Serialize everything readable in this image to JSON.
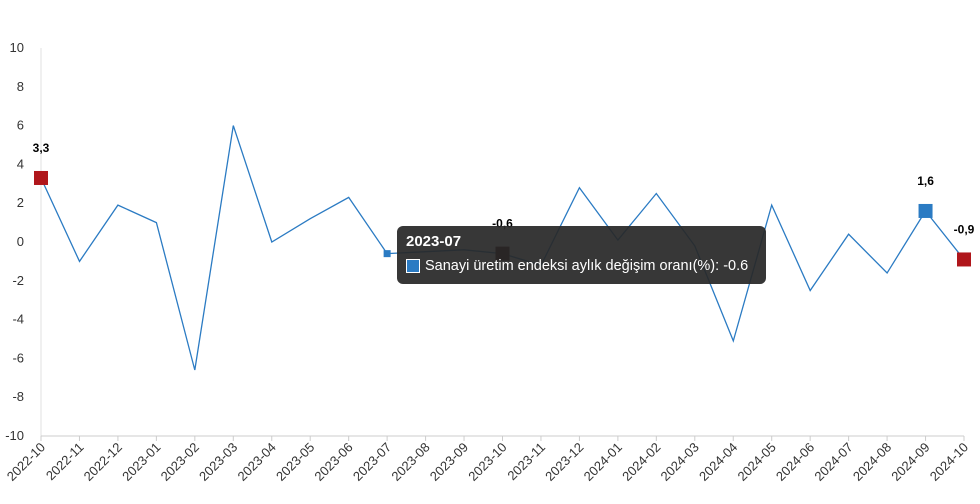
{
  "chart_data": {
    "type": "line",
    "x": [
      "2022-10",
      "2022-11",
      "2022-12",
      "2023-01",
      "2023-02",
      "2023-03",
      "2023-04",
      "2023-05",
      "2023-06",
      "2023-07",
      "2023-08",
      "2023-09",
      "2023-10",
      "2023-11",
      "2023-12",
      "2024-01",
      "2024-02",
      "2024-03",
      "2024-04",
      "2024-05",
      "2024-06",
      "2024-07",
      "2024-08",
      "2024-09",
      "2024-10"
    ],
    "series": [
      {
        "name": "Sanayi üretim endeksi aylık değişim oranı(%)",
        "values": [
          3.3,
          -1.0,
          1.9,
          1.0,
          -6.6,
          6.0,
          0.0,
          1.2,
          2.3,
          -0.6,
          -0.5,
          -0.4,
          -0.6,
          -1.2,
          2.8,
          0.1,
          2.5,
          -0.2,
          -5.1,
          1.9,
          -2.5,
          0.4,
          -1.6,
          1.6,
          -0.9
        ],
        "color": "#2b7bc3"
      }
    ],
    "ylim": [
      -10,
      10
    ],
    "y_ticks": [
      10,
      8,
      6,
      4,
      2,
      0,
      -2,
      -4,
      -6,
      -8,
      -10
    ],
    "grid": false,
    "highlighted_points": [
      {
        "x": "2022-10",
        "label": "3,3",
        "color": "#b0161b"
      },
      {
        "x": "2023-10",
        "label": "-0,6",
        "color": "#3d0000"
      },
      {
        "x": "2024-09",
        "label": "1,6",
        "color": "#2b7bc3"
      },
      {
        "x": "2024-10",
        "label": "-0,9",
        "color": "#b0161b"
      }
    ],
    "hovered_point": {
      "x": "2023-07",
      "color": "#2b7bc3"
    }
  },
  "tooltip": {
    "title": "2023-07",
    "series_label": "Sanayi üretim endeksi aylık değişim oranı(%)",
    "value_text": "-0.6"
  }
}
